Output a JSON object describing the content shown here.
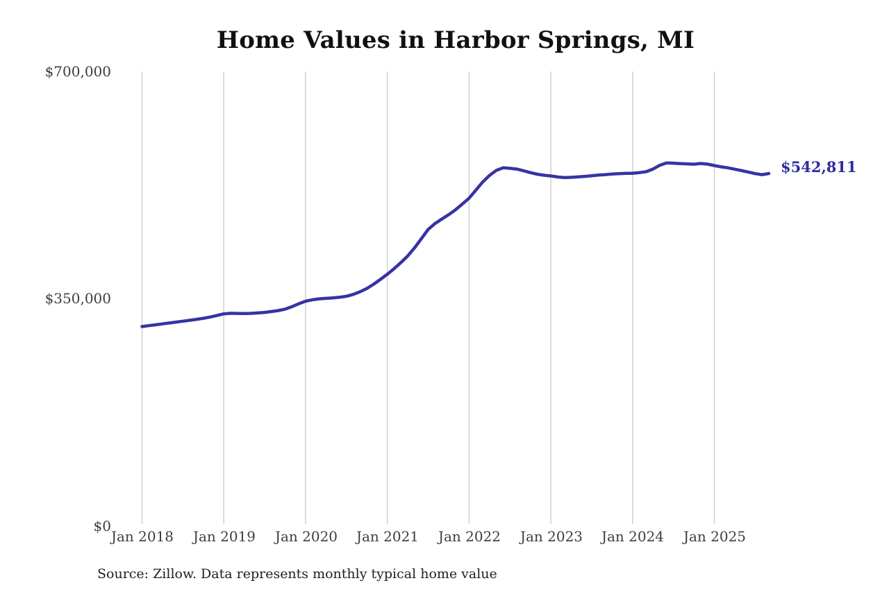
{
  "chart_data": {
    "type": "line",
    "title": "Home Values in Harbor Springs, MI",
    "xlabel": "",
    "ylabel": "",
    "ylim": [
      0,
      700000
    ],
    "grid": "vertical-only",
    "legend": "none",
    "y_ticks": [
      700000,
      350000,
      0
    ],
    "y_tick_labels": [
      "$700,000",
      "$350,000",
      "$0"
    ],
    "x_tick_labels": [
      "Jan 2018",
      "Jan 2019",
      "Jan 2020",
      "Jan 2021",
      "Jan 2022",
      "Jan 2023",
      "Jan 2024",
      "Jan 2025"
    ],
    "end_label": "$542,811",
    "last_value": 542811,
    "last_month": "2025-09",
    "source_note": "Source: Zillow. Data represents monthly typical home value",
    "colors": {
      "line": "#3633a4",
      "gridline": "#c9c9c9",
      "end_label": "#2d2da0",
      "tick_label": "#3d3d3d",
      "title": "#111111"
    },
    "x": [
      "2018-01",
      "2018-02",
      "2018-03",
      "2018-04",
      "2018-05",
      "2018-06",
      "2018-07",
      "2018-08",
      "2018-09",
      "2018-10",
      "2018-11",
      "2018-12",
      "2019-01",
      "2019-02",
      "2019-03",
      "2019-04",
      "2019-05",
      "2019-06",
      "2019-07",
      "2019-08",
      "2019-09",
      "2019-10",
      "2019-11",
      "2019-12",
      "2020-01",
      "2020-02",
      "2020-03",
      "2020-04",
      "2020-05",
      "2020-06",
      "2020-07",
      "2020-08",
      "2020-09",
      "2020-10",
      "2020-11",
      "2020-12",
      "2021-01",
      "2021-02",
      "2021-03",
      "2021-04",
      "2021-05",
      "2021-06",
      "2021-07",
      "2021-08",
      "2021-09",
      "2021-10",
      "2021-11",
      "2021-12",
      "2022-01",
      "2022-02",
      "2022-03",
      "2022-04",
      "2022-05",
      "2022-06",
      "2022-07",
      "2022-08",
      "2022-09",
      "2022-10",
      "2022-11",
      "2022-12",
      "2023-01",
      "2023-02",
      "2023-03",
      "2023-04",
      "2023-05",
      "2023-06",
      "2023-07",
      "2023-08",
      "2023-09",
      "2023-10",
      "2023-11",
      "2023-12",
      "2024-01",
      "2024-02",
      "2024-03",
      "2024-04",
      "2024-05",
      "2024-06",
      "2024-07",
      "2024-08",
      "2024-09",
      "2024-10",
      "2024-11",
      "2024-12",
      "2025-01",
      "2025-02",
      "2025-03",
      "2025-04",
      "2025-05",
      "2025-06",
      "2025-07",
      "2025-08",
      "2025-09"
    ],
    "values": [
      307000,
      308300,
      309600,
      311000,
      312400,
      313800,
      315200,
      316600,
      318100,
      319700,
      321600,
      324000,
      326500,
      327400,
      327200,
      327000,
      327300,
      327900,
      328800,
      330000,
      331500,
      333800,
      337500,
      342000,
      346000,
      348200,
      349600,
      350400,
      351100,
      352100,
      353600,
      356500,
      360500,
      365600,
      372200,
      379700,
      387500,
      396200,
      405700,
      415800,
      428200,
      442300,
      456600,
      465700,
      472600,
      479200,
      486700,
      495600,
      504700,
      517200,
      529700,
      539800,
      547600,
      551600,
      550800,
      549600,
      547100,
      544200,
      541700,
      540100,
      539000,
      537400,
      536500,
      536900,
      537500,
      538400,
      539400,
      540400,
      541100,
      542000,
      542600,
      543000,
      543200,
      544200,
      545600,
      549600,
      555500,
      559100,
      558700,
      558100,
      557600,
      557100,
      558300,
      557200,
      555100,
      553100,
      551500,
      549400,
      547300,
      545000,
      542600,
      541000,
      542811
    ]
  }
}
